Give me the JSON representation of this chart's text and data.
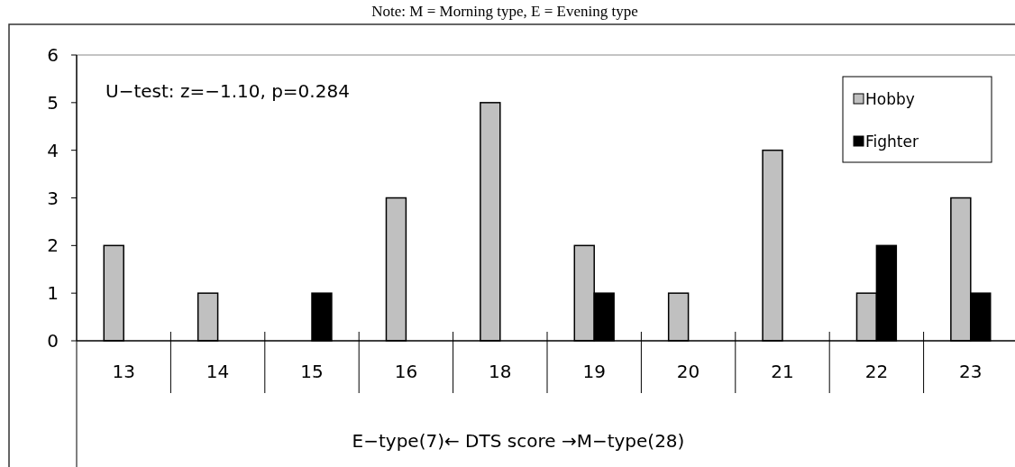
{
  "chart_data": {
    "type": "bar",
    "xlabel": "E−type(7)← DTS score →M−type(28)",
    "categories": [
      "13",
      "14",
      "15",
      "16",
      "18",
      "19",
      "20",
      "21",
      "22",
      "23"
    ],
    "series": [
      {
        "name": "Hobby",
        "color": "#c0c0c0",
        "values": [
          2,
          1,
          0,
          3,
          5,
          2,
          1,
          4,
          1,
          3
        ]
      },
      {
        "name": "Fighter",
        "color": "#000000",
        "values": [
          0,
          0,
          1,
          0,
          0,
          1,
          0,
          0,
          2,
          1
        ]
      }
    ],
    "ylim": [
      0,
      6
    ],
    "yticks": [
      0,
      1,
      2,
      3,
      4,
      5,
      6
    ],
    "grid": false,
    "legend": "top right",
    "annotations": [
      "Note: M = Morning type, E = Evening type",
      "U−test: z=−1.10, p=0.284"
    ]
  }
}
